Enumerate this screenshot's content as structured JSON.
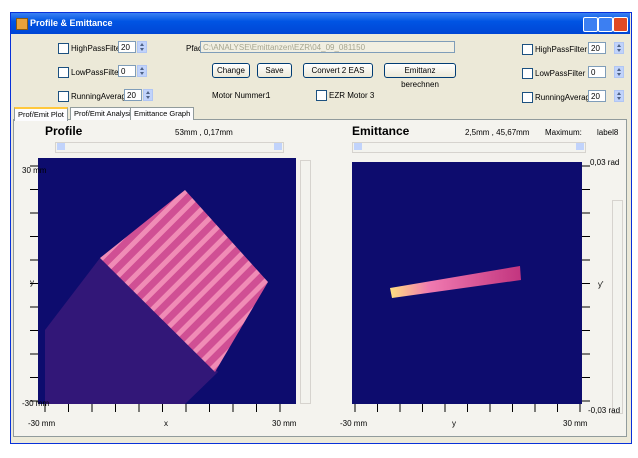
{
  "window": {
    "title": "Profile & Emittance"
  },
  "filters_left": [
    {
      "label": "HighPassFilter",
      "value": 20
    },
    {
      "label": "LowPassFilter",
      "value": 0
    },
    {
      "label": "RunningAverage",
      "value": 20
    }
  ],
  "path_label": "Pfad:",
  "path_value": "C:\\ANALYSE\\Emittanzen\\EZR\\04_09_081150",
  "buttons": [
    "Change",
    "Save",
    "Convert 2 EAS",
    "Emittanz berechnen"
  ],
  "motor_label": "Motor Nummer:",
  "motor_value": 1,
  "motor_checkbox": "EZR Motor 3",
  "filters_right": [
    {
      "label": "HighPassFilter",
      "value": 20
    },
    {
      "label": "LowPassFilter",
      "value": 0
    },
    {
      "label": "RunningAverage",
      "value": 20
    }
  ],
  "tabs": [
    "Prof/Emit Plot",
    "Prof/Emit Analysis",
    "Emittance Graph"
  ],
  "profile": {
    "title": "Profile",
    "info": "53mm , 0,17mm",
    "y_top": "30 mm",
    "y_label": "y",
    "y_bottom": "-30 mm",
    "x_left": "-30 mm",
    "x_label": "x",
    "x_right": "30 mm"
  },
  "emittance": {
    "title": "Emittance",
    "info": "2,5mm , 45,67mm",
    "max_label": "Maximum:",
    "max_value": "label8",
    "y_top": "0,03 rad",
    "y_label": "y'",
    "y_bottom": "-0,03 rad",
    "x_left": "-30 mm",
    "x_label": "y",
    "x_right": "30 mm"
  }
}
